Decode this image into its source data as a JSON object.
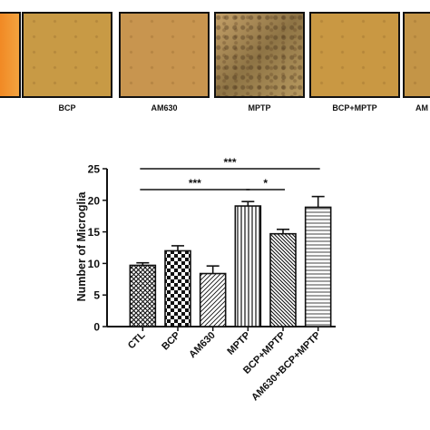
{
  "panels": [
    {
      "label": "",
      "color": "#e8962e",
      "texture": "none"
    },
    {
      "label": "BCP",
      "color": "#c89a45",
      "texture": "sparse"
    },
    {
      "label": "AM630",
      "color": "#c8954f",
      "texture": "sparse"
    },
    {
      "label": "MPTP",
      "color": "#a8864a",
      "texture": "dense"
    },
    {
      "label": "BCP+MPTP",
      "color": "#c99843",
      "texture": "sparse"
    },
    {
      "label": "AM",
      "color": "#c49547",
      "texture": "sparse"
    }
  ],
  "chart_data": {
    "type": "bar",
    "categories": [
      "CTL",
      "BCP",
      "AM630",
      "MPTP",
      "BCP+MPTP",
      "AM630+BCP+MPTP"
    ],
    "values": [
      9.7,
      12.0,
      8.4,
      19.1,
      14.7,
      18.9
    ],
    "errors": [
      0.4,
      0.8,
      1.2,
      0.7,
      0.7,
      1.7
    ],
    "patterns": [
      "crosshatch",
      "checker",
      "diagonal-left",
      "vertical",
      "diagonal-right",
      "horizontal"
    ],
    "ylabel": "Number of Microglia",
    "xlabel": "",
    "ylim": [
      0,
      25
    ],
    "yticks": [
      0,
      5,
      10,
      15,
      20,
      25
    ],
    "significance": [
      {
        "from": 0,
        "to": 5,
        "label": "***"
      },
      {
        "from": 0,
        "to": 3,
        "label": "***"
      },
      {
        "from": 3,
        "to": 4,
        "label": "*"
      }
    ]
  }
}
